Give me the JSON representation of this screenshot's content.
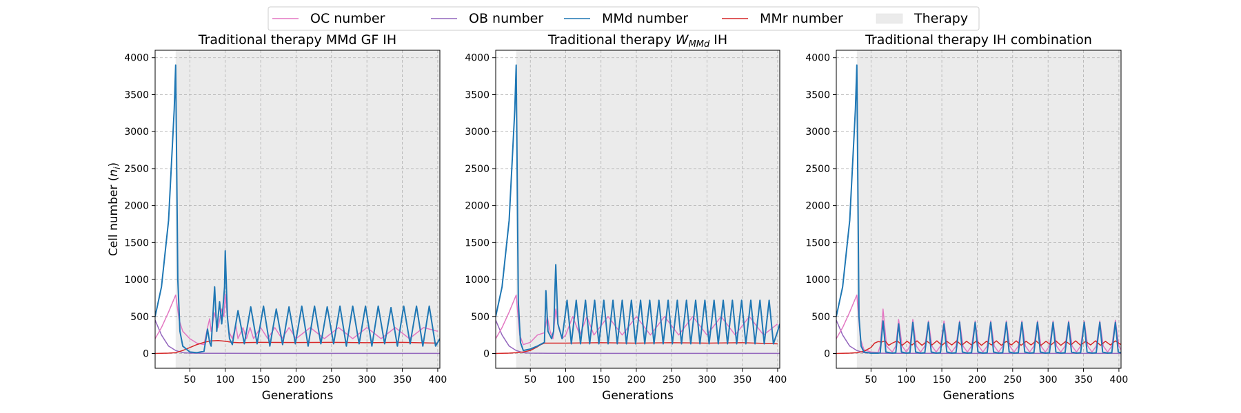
{
  "legend": {
    "items": [
      {
        "label": "OC number",
        "color": "#e377c2",
        "kind": "line"
      },
      {
        "label": "OB number",
        "color": "#9467bd",
        "kind": "line"
      },
      {
        "label": "MMd number",
        "color": "#1f77b4",
        "kind": "line"
      },
      {
        "label": "MMr number",
        "color": "#d62728",
        "kind": "line"
      },
      {
        "label": "Therapy",
        "color": "#ebebeb",
        "kind": "patch"
      }
    ],
    "placement": "top-center"
  },
  "colors": {
    "therapy": "#ebebeb",
    "grid": "#b0b0b0",
    "OC": "#e377c2",
    "OB": "#9467bd",
    "MMd": "#1f77b4",
    "MMr": "#d62728"
  },
  "chart_data": [
    {
      "type": "line",
      "title": "Traditional therapy MMd GF IH",
      "xlabel": "Generations",
      "ylabel": "Cell number (n_i)",
      "xlim": [
        1,
        403
      ],
      "ylim": [
        -200,
        4100
      ],
      "xticks": [
        50,
        100,
        150,
        200,
        250,
        300,
        350,
        400
      ],
      "yticks": [
        0,
        500,
        1000,
        1500,
        2000,
        2500,
        3000,
        3500,
        4000
      ],
      "grid": true,
      "therapy_span": [
        30,
        403
      ],
      "series": [
        {
          "name": "OC number",
          "x": [
            1,
            10,
            20,
            30,
            35,
            40,
            50,
            60,
            70,
            75,
            78,
            80,
            85,
            90,
            95,
            98,
            100,
            105,
            110,
            115,
            118,
            125,
            130,
            135,
            140,
            150,
            160,
            170,
            180,
            190,
            200,
            220,
            240,
            260,
            280,
            300,
            320,
            340,
            360,
            380,
            400
          ],
          "y": [
            200,
            350,
            560,
            790,
            450,
            300,
            200,
            140,
            120,
            350,
            470,
            300,
            550,
            350,
            600,
            500,
            800,
            300,
            200,
            380,
            200,
            350,
            200,
            350,
            200,
            350,
            200,
            350,
            200,
            350,
            200,
            350,
            200,
            350,
            200,
            350,
            200,
            350,
            200,
            350,
            300
          ]
        },
        {
          "name": "OB number",
          "x": [
            1,
            10,
            20,
            30,
            40,
            50,
            75,
            100,
            200,
            300,
            403
          ],
          "y": [
            450,
            250,
            100,
            40,
            10,
            5,
            3,
            2,
            1,
            1,
            1
          ]
        },
        {
          "name": "MMd number",
          "x": [
            1,
            10,
            20,
            28,
            30,
            33,
            36,
            40,
            50,
            60,
            70,
            75,
            78,
            80,
            85,
            88,
            92,
            95,
            99,
            100,
            103,
            106,
            110,
            118,
            127,
            136,
            145,
            154,
            163,
            172,
            181,
            190,
            199,
            208,
            217,
            226,
            235,
            244,
            253,
            262,
            271,
            280,
            289,
            298,
            307,
            316,
            325,
            334,
            343,
            352,
            361,
            370,
            379,
            388,
            397,
            403
          ],
          "y": [
            500,
            900,
            1800,
            3300,
            3900,
            1000,
            300,
            100,
            20,
            10,
            30,
            330,
            150,
            100,
            900,
            300,
            700,
            400,
            900,
            1390,
            500,
            200,
            120,
            580,
            130,
            630,
            130,
            640,
            100,
            600,
            120,
            630,
            130,
            640,
            100,
            640,
            130,
            630,
            130,
            640,
            100,
            640,
            130,
            640,
            100,
            640,
            130,
            620,
            100,
            640,
            130,
            640,
            100,
            640,
            100,
            200
          ]
        },
        {
          "name": "MMr number",
          "x": [
            1,
            20,
            30,
            40,
            50,
            60,
            70,
            80,
            90,
            100,
            110,
            120,
            150,
            200,
            250,
            300,
            350,
            400
          ],
          "y": [
            0,
            5,
            10,
            40,
            80,
            120,
            150,
            170,
            175,
            165,
            150,
            145,
            150,
            148,
            150,
            145,
            150,
            140
          ]
        }
      ]
    },
    {
      "type": "line",
      "title": "Traditional therapy ",
      "title_math": "W",
      "title_math_sub": "MMd",
      "title_suffix": " IH",
      "xlabel": "Generations",
      "ylabel": "",
      "xlim": [
        1,
        403
      ],
      "ylim": [
        -200,
        4100
      ],
      "xticks": [
        50,
        100,
        150,
        200,
        250,
        300,
        350,
        400
      ],
      "yticks": [
        0,
        500,
        1000,
        1500,
        2000,
        2500,
        3000,
        3500,
        4000
      ],
      "grid": true,
      "therapy_span": [
        30,
        403
      ],
      "series": [
        {
          "name": "OC number",
          "x": [
            1,
            10,
            20,
            30,
            35,
            40,
            50,
            60,
            70,
            74,
            78,
            82,
            86,
            90,
            95,
            100,
            110,
            120,
            130,
            140,
            160,
            180,
            200,
            220,
            240,
            260,
            280,
            300,
            320,
            340,
            360,
            380,
            400
          ],
          "y": [
            200,
            350,
            560,
            790,
            250,
            120,
            150,
            250,
            280,
            500,
            300,
            200,
            600,
            350,
            200,
            250,
            500,
            250,
            500,
            250,
            500,
            250,
            500,
            250,
            500,
            250,
            500,
            250,
            500,
            250,
            500,
            250,
            400
          ]
        },
        {
          "name": "OB number",
          "x": [
            1,
            10,
            20,
            30,
            40,
            50,
            75,
            100,
            200,
            300,
            403
          ],
          "y": [
            450,
            250,
            100,
            40,
            10,
            5,
            3,
            2,
            1,
            1,
            1
          ]
        },
        {
          "name": "MMd number",
          "x": [
            1,
            10,
            20,
            28,
            30,
            33,
            36,
            40,
            50,
            60,
            70,
            72,
            75,
            80,
            83,
            86,
            89,
            95,
            102,
            108,
            115,
            121,
            128,
            134,
            141,
            147,
            154,
            160,
            167,
            173,
            180,
            186,
            193,
            199,
            206,
            212,
            219,
            225,
            232,
            238,
            245,
            251,
            258,
            264,
            271,
            277,
            284,
            290,
            297,
            303,
            310,
            316,
            323,
            329,
            336,
            342,
            349,
            355,
            362,
            368,
            375,
            381,
            388,
            394,
            400,
            403
          ],
          "y": [
            500,
            900,
            1800,
            3300,
            3900,
            700,
            150,
            40,
            60,
            100,
            150,
            850,
            300,
            200,
            300,
            1200,
            400,
            200,
            720,
            130,
            720,
            130,
            720,
            130,
            720,
            130,
            720,
            130,
            720,
            130,
            720,
            130,
            720,
            130,
            720,
            130,
            720,
            130,
            720,
            130,
            720,
            130,
            720,
            130,
            720,
            130,
            720,
            130,
            720,
            130,
            720,
            130,
            720,
            130,
            720,
            130,
            720,
            130,
            720,
            130,
            720,
            130,
            720,
            130,
            300,
            400
          ]
        },
        {
          "name": "MMr number",
          "x": [
            1,
            20,
            30,
            40,
            50,
            60,
            65,
            70,
            100,
            150,
            200,
            250,
            300,
            350,
            400
          ],
          "y": [
            0,
            5,
            10,
            20,
            40,
            90,
            120,
            140,
            140,
            145,
            140,
            145,
            140,
            145,
            130
          ]
        }
      ]
    },
    {
      "type": "line",
      "title": "Traditional therapy IH combination",
      "xlabel": "Generations",
      "ylabel": "",
      "xlim": [
        1,
        403
      ],
      "ylim": [
        -200,
        4100
      ],
      "xticks": [
        50,
        100,
        150,
        200,
        250,
        300,
        350,
        400
      ],
      "yticks": [
        0,
        500,
        1000,
        1500,
        2000,
        2500,
        3000,
        3500,
        4000
      ],
      "grid": true,
      "therapy_span": [
        30,
        403
      ],
      "series": [
        {
          "name": "OC number",
          "x": [
            1,
            10,
            20,
            30,
            35,
            40,
            50,
            60,
            63,
            67,
            72,
            80,
            85,
            89,
            94,
            100,
            105,
            109,
            114,
            120,
            126,
            131,
            136,
            142,
            148,
            153,
            158,
            164,
            170,
            175,
            180,
            186,
            192,
            197,
            202,
            208,
            214,
            219,
            224,
            230,
            236,
            241,
            246,
            252,
            258,
            263,
            268,
            274,
            280,
            285,
            290,
            296,
            302,
            307,
            312,
            318,
            324,
            329,
            334,
            340,
            346,
            351,
            356,
            362,
            368,
            373,
            378,
            384,
            390,
            395,
            400,
            403
          ],
          "y": [
            200,
            350,
            560,
            790,
            200,
            50,
            20,
            15,
            100,
            600,
            100,
            20,
            100,
            460,
            100,
            20,
            100,
            460,
            100,
            20,
            100,
            440,
            100,
            20,
            100,
            440,
            100,
            20,
            100,
            440,
            100,
            20,
            100,
            440,
            100,
            20,
            100,
            440,
            100,
            20,
            100,
            440,
            100,
            20,
            100,
            440,
            100,
            20,
            100,
            440,
            100,
            20,
            100,
            440,
            100,
            20,
            100,
            440,
            100,
            20,
            100,
            440,
            100,
            20,
            100,
            440,
            100,
            20,
            100,
            450,
            100,
            50
          ]
        },
        {
          "name": "OB number",
          "x": [
            1,
            10,
            20,
            30,
            40,
            50,
            75,
            100,
            200,
            300,
            403
          ],
          "y": [
            450,
            250,
            100,
            40,
            10,
            5,
            3,
            2,
            1,
            1,
            1
          ]
        },
        {
          "name": "MMd number",
          "x": [
            1,
            10,
            20,
            28,
            30,
            33,
            36,
            40,
            50,
            60,
            63,
            67,
            71,
            80,
            85,
            89,
            93,
            100,
            105,
            109,
            113,
            120,
            126,
            131,
            135,
            142,
            148,
            153,
            157,
            164,
            170,
            175,
            179,
            186,
            192,
            197,
            201,
            208,
            214,
            219,
            223,
            230,
            236,
            241,
            245,
            252,
            258,
            263,
            267,
            274,
            280,
            285,
            289,
            296,
            302,
            307,
            311,
            318,
            324,
            329,
            333,
            340,
            346,
            351,
            355,
            362,
            368,
            373,
            377,
            384,
            390,
            395,
            399,
            403
          ],
          "y": [
            500,
            900,
            1800,
            3300,
            3900,
            500,
            100,
            20,
            5,
            5,
            10,
            440,
            20,
            5,
            10,
            400,
            20,
            5,
            10,
            420,
            20,
            5,
            10,
            420,
            20,
            5,
            10,
            400,
            20,
            5,
            10,
            420,
            20,
            5,
            10,
            420,
            20,
            5,
            10,
            420,
            20,
            5,
            10,
            420,
            20,
            5,
            10,
            420,
            20,
            5,
            10,
            420,
            20,
            5,
            10,
            420,
            20,
            5,
            10,
            420,
            20,
            5,
            10,
            420,
            20,
            5,
            10,
            420,
            20,
            5,
            10,
            420,
            20,
            10
          ]
        },
        {
          "name": "MMr number",
          "x": [
            1,
            20,
            30,
            40,
            50,
            55,
            60,
            65,
            70,
            75,
            80,
            87,
            94,
            101,
            108,
            115,
            122,
            129,
            136,
            143,
            150,
            157,
            164,
            171,
            178,
            185,
            192,
            199,
            206,
            213,
            220,
            227,
            234,
            241,
            248,
            255,
            262,
            269,
            276,
            283,
            290,
            297,
            304,
            311,
            318,
            325,
            332,
            339,
            346,
            353,
            360,
            367,
            374,
            381,
            388,
            395,
            403
          ],
          "y": [
            0,
            5,
            10,
            30,
            80,
            140,
            160,
            155,
            170,
            110,
            140,
            170,
            110,
            165,
            115,
            170,
            110,
            165,
            115,
            170,
            110,
            165,
            115,
            170,
            110,
            165,
            115,
            170,
            110,
            165,
            115,
            170,
            110,
            165,
            115,
            170,
            110,
            165,
            115,
            170,
            110,
            165,
            115,
            170,
            110,
            165,
            115,
            170,
            110,
            165,
            115,
            170,
            110,
            165,
            115,
            170,
            120
          ]
        }
      ]
    }
  ]
}
